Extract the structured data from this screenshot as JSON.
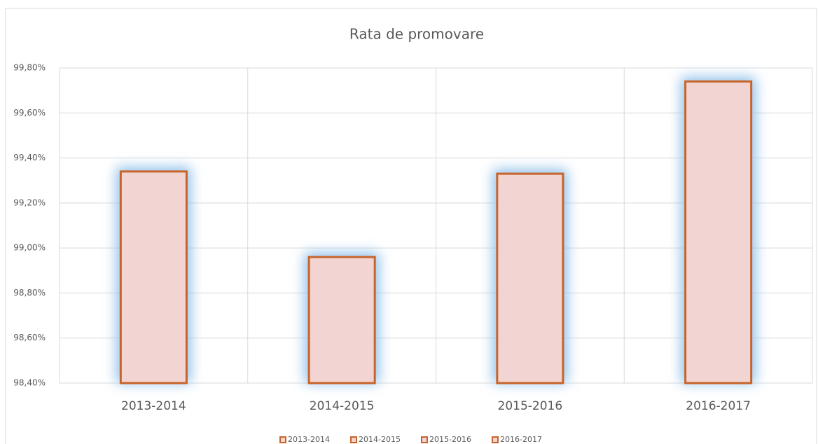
{
  "chart_data": {
    "type": "bar",
    "title": "Rata de promovare",
    "categories": [
      "2013-2014",
      "2014-2015",
      "2015-2016",
      "2016-2017"
    ],
    "values": [
      99.34,
      98.96,
      99.33,
      99.74
    ],
    "color": "#f2d4d2",
    "edge_color": "#c8642a",
    "glow_color": "#8fc0ea",
    "ylim": [
      98.4,
      99.8
    ],
    "yticks": [
      {
        "value": 98.4,
        "label": "98,40%"
      },
      {
        "value": 98.6,
        "label": "98,60%"
      },
      {
        "value": 98.8,
        "label": "98,80%"
      },
      {
        "value": 99.0,
        "label": "99,00%"
      },
      {
        "value": 99.2,
        "label": "99,20%"
      },
      {
        "value": 99.4,
        "label": "99,40%"
      },
      {
        "value": 99.6,
        "label": "99,60%"
      },
      {
        "value": 99.8,
        "label": "99,80%"
      }
    ],
    "grid": true,
    "legend": "bottom"
  }
}
